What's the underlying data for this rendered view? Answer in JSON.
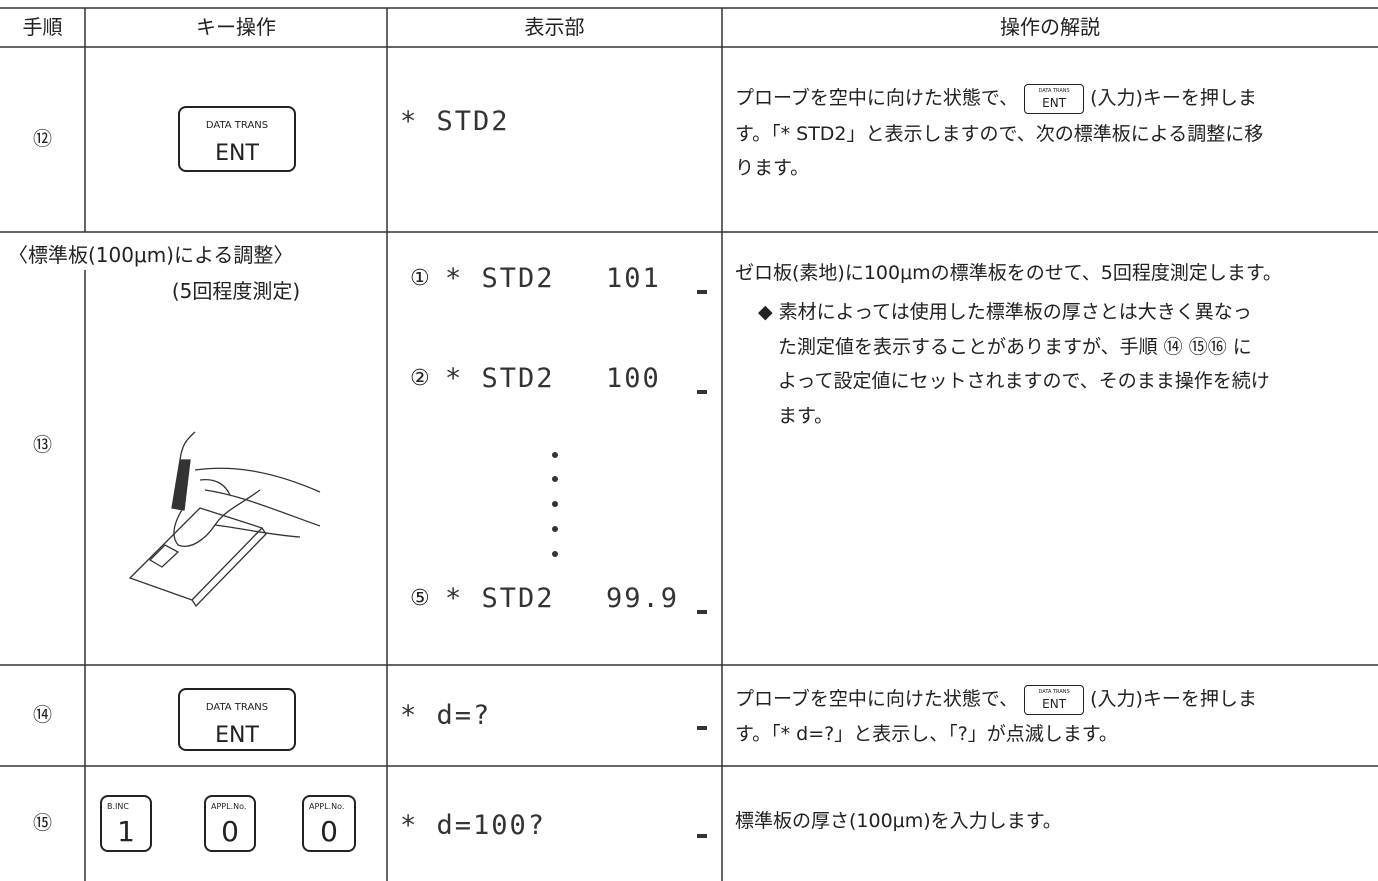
{
  "header": [
    "手順",
    "キー操作",
    "表示部",
    "操作の解説"
  ],
  "rows": [
    {
      "step": "⑫",
      "keys": [
        {
          "top": "DATA TRANS",
          "main": "ENT"
        }
      ],
      "display": [
        "* STD2"
      ],
      "explanation": {
        "before": "プローブを空中に向けた状態で、",
        "key": {
          "top": "DATA TRANS",
          "main": "ENT"
        },
        "after": "(入力)キーを押しま",
        "lines": [
          "す。「* STD2」と表示しますので、次の標準板による調整に移",
          "ります。"
        ]
      }
    },
    {
      "title": "〈標準板(100μm)による調整〉",
      "subtitle": "(5回程度測定)",
      "step": "⑬",
      "display": [
        {
          "index": "①",
          "text": "* STD2",
          "value": "101"
        },
        {
          "index": "②",
          "text": "* STD2",
          "value": "100"
        },
        {
          "index": "⑤",
          "text": "* STD2",
          "value": "99.9"
        }
      ],
      "explanation": [
        "ゼロ板(素地)に100μmの標準板をのせて、5回程度測定します。",
        "◆ 素材によっては使用した標準板の厚さとは大きく異なっ",
        "た測定値を表示することがありますが、手順 ⑭ ⑮⑯ に",
        "よって設定値にセットされますので、そのまま操作を続け",
        "ます。"
      ]
    },
    {
      "step": "⑭",
      "keys": [
        {
          "top": "DATA TRANS",
          "main": "ENT"
        }
      ],
      "display": [
        "* d=?"
      ],
      "explanation": {
        "before": "プローブを空中に向けた状態で、",
        "key": {
          "top": "DATA TRANS",
          "main": "ENT"
        },
        "after": "(入力)キーを押しま",
        "lines": [
          "す。「* d=?」と表示し、「?」が点滅します。"
        ]
      }
    },
    {
      "step": "⑮",
      "keys": [
        {
          "top": "B.INC",
          "main": "1"
        },
        {
          "top": "APPL.No.",
          "main": "0"
        },
        {
          "top": "APPL.No.",
          "main": "0"
        }
      ],
      "display": [
        "* d=100?"
      ],
      "explanation": [
        "標準板の厚さ(100μm)を入力します。"
      ]
    }
  ]
}
